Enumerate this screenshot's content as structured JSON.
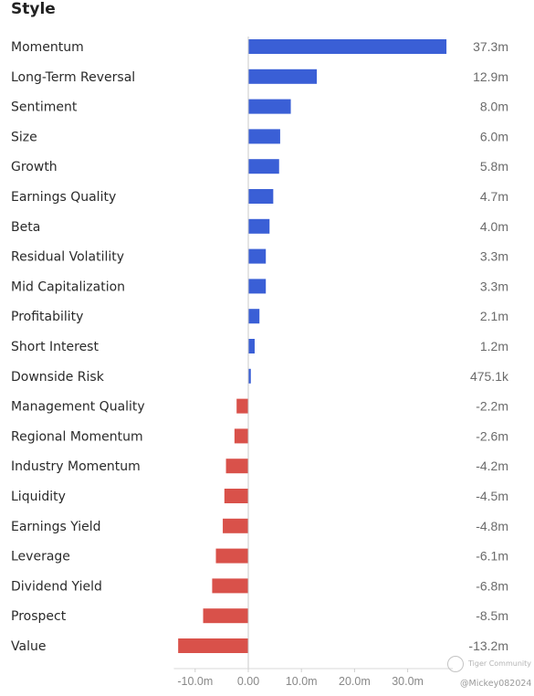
{
  "chart_data": {
    "type": "bar",
    "orientation": "horizontal",
    "title": "Style",
    "categories": [
      "Momentum",
      "Long-Term Reversal",
      "Sentiment",
      "Size",
      "Growth",
      "Earnings Quality",
      "Beta",
      "Residual Volatility",
      "Mid Capitalization",
      "Profitability",
      "Short Interest",
      "Downside Risk",
      "Management Quality",
      "Regional Momentum",
      "Industry Momentum",
      "Liquidity",
      "Earnings Yield",
      "Leverage",
      "Dividend Yield",
      "Prospect",
      "Value"
    ],
    "values": [
      37.3,
      12.9,
      8.0,
      6.0,
      5.8,
      4.7,
      4.0,
      3.3,
      3.3,
      2.1,
      1.2,
      0.4751,
      -2.2,
      -2.6,
      -4.2,
      -4.5,
      -4.8,
      -6.1,
      -6.8,
      -8.5,
      -13.2
    ],
    "value_labels": [
      "37.3m",
      "12.9m",
      "8.0m",
      "6.0m",
      "5.8m",
      "4.7m",
      "4.0m",
      "3.3m",
      "3.3m",
      "2.1m",
      "1.2m",
      "475.1k",
      "-2.2m",
      "-2.6m",
      "-4.2m",
      "-4.5m",
      "-4.8m",
      "-6.1m",
      "-6.8m",
      "-8.5m",
      "-13.2m"
    ],
    "x_ticks": [
      -10,
      0,
      10,
      20,
      30
    ],
    "x_tick_labels": [
      "-10.0m",
      "0.00",
      "10.0m",
      "20.0m",
      "30.0m"
    ],
    "xlim": [
      -14,
      38.5
    ],
    "xlabel": "",
    "ylabel": "",
    "grid": false,
    "colors": {
      "positive": "#3a5fd6",
      "negative": "#d9514a"
    }
  },
  "watermark": {
    "brand": "Tiger Community",
    "user": "@Mickey082024"
  }
}
